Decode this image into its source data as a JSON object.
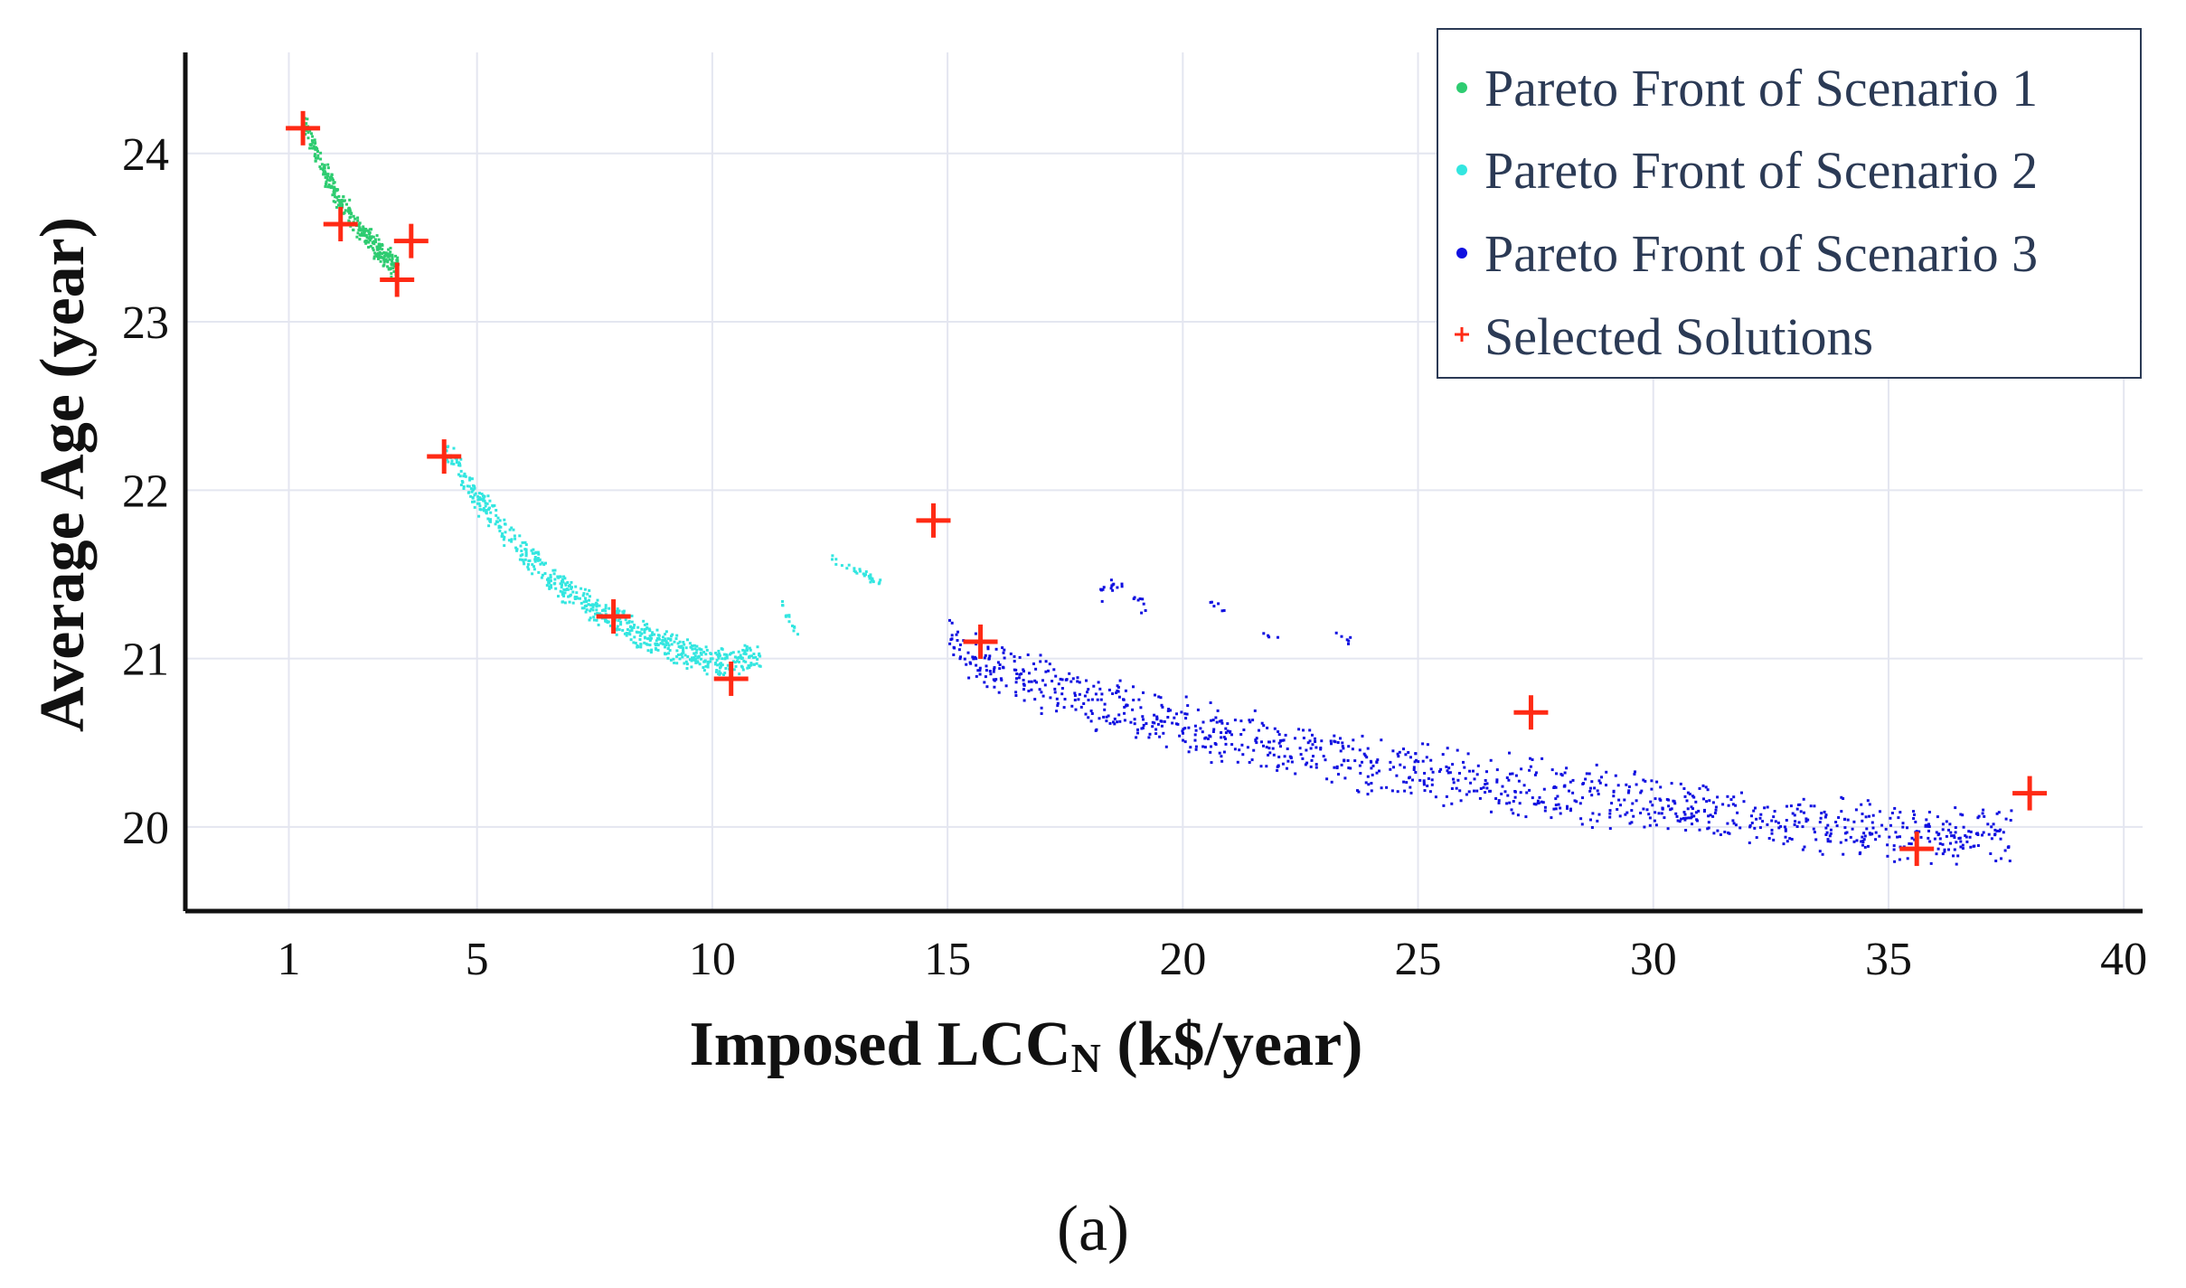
{
  "caption": "(a)",
  "chart_data": {
    "type": "scatter",
    "title": "",
    "xlabel_main": "Imposed LCC",
    "xlabel_sub": "N",
    "xlabel_unit": " (k$/year)",
    "ylabel": "Average Age (year)",
    "xlim": [
      -1.2,
      40.4
    ],
    "ylim": [
      19.5,
      24.6
    ],
    "xticks": [
      1,
      5,
      10,
      15,
      20,
      25,
      30,
      35,
      40
    ],
    "yticks": [
      20,
      21,
      22,
      23,
      24
    ],
    "grid": true,
    "legend_position": "top-right",
    "colors": {
      "scenario1": "#2ecc71",
      "scenario2": "#33e6e0",
      "scenario3": "#1010e0",
      "selected": "#ff2a14",
      "axis": "#111111",
      "grid": "#e4e6f0"
    },
    "series": [
      {
        "name": "Pareto Front of Scenario 1",
        "marker": "dot",
        "color": "#2ecc71",
        "segments": [
          {
            "x": [
              1.3,
              1.6,
              2.0,
              2.5,
              3.0,
              3.3
            ],
            "y": [
              24.2,
              23.98,
              23.75,
              23.55,
              23.4,
              23.32
            ],
            "count": 320,
            "spread": 0.09
          }
        ]
      },
      {
        "name": "Pareto Front of Scenario 2",
        "marker": "dot",
        "color": "#33e6e0",
        "segments": [
          {
            "x": [
              4.3,
              5.0,
              6.0,
              7.0,
              8.0,
              9.0,
              10.0,
              11.0
            ],
            "y": [
              22.25,
              21.95,
              21.62,
              21.38,
              21.22,
              21.08,
              20.98,
              21.02
            ],
            "count": 650,
            "spread": 0.1
          },
          {
            "x": [
              11.4,
              11.8
            ],
            "y": [
              21.35,
              21.15
            ],
            "count": 14,
            "spread": 0.04
          },
          {
            "x": [
              12.5,
              13.1,
              13.6
            ],
            "y": [
              21.6,
              21.52,
              21.45
            ],
            "count": 30,
            "spread": 0.03
          }
        ]
      },
      {
        "name": "Pareto Front of Scenario 3",
        "marker": "dot",
        "color": "#1010e0",
        "segments": [
          {
            "x": [
              15.0,
              16.0,
              17.0,
              18.0,
              20.0,
              22.0,
              24.0,
              26.0,
              28.0,
              30.0,
              32.0,
              34.0,
              36.0,
              37.6
            ],
            "y": [
              21.1,
              20.97,
              20.85,
              20.74,
              20.6,
              20.48,
              20.38,
              20.3,
              20.22,
              20.14,
              20.07,
              20.01,
              19.97,
              19.95
            ],
            "count": 1100,
            "spread": 0.2
          },
          {
            "x": [
              18.2,
              18.6,
              19.2
            ],
            "y": [
              21.38,
              21.45,
              21.3
            ],
            "count": 22,
            "spread": 0.06
          },
          {
            "x": [
              20.5,
              20.9
            ],
            "y": [
              21.35,
              21.3
            ],
            "count": 6,
            "spread": 0.03
          },
          {
            "x": [
              23.2,
              23.6
            ],
            "y": [
              21.15,
              21.1
            ],
            "count": 6,
            "spread": 0.03
          },
          {
            "x": [
              21.5,
              22.0
            ],
            "y": [
              21.15,
              21.12
            ],
            "count": 4,
            "spread": 0.03
          }
        ]
      },
      {
        "name": "Selected Solutions",
        "marker": "plus",
        "color": "#ff2a14",
        "points": [
          {
            "x": 1.3,
            "y": 24.15
          },
          {
            "x": 2.1,
            "y": 23.58
          },
          {
            "x": 3.6,
            "y": 23.48
          },
          {
            "x": 3.3,
            "y": 23.25
          },
          {
            "x": 4.3,
            "y": 22.2
          },
          {
            "x": 7.9,
            "y": 21.25
          },
          {
            "x": 10.4,
            "y": 20.88
          },
          {
            "x": 14.7,
            "y": 21.82
          },
          {
            "x": 15.7,
            "y": 21.1
          },
          {
            "x": 27.4,
            "y": 20.68
          },
          {
            "x": 35.6,
            "y": 19.87
          },
          {
            "x": 38.0,
            "y": 20.2
          }
        ]
      }
    ]
  }
}
